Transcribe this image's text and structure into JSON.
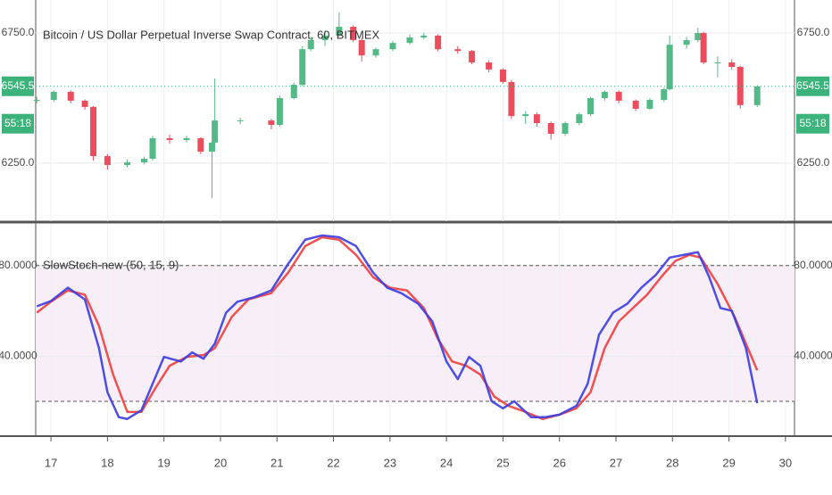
{
  "chart_data": [
    {
      "type": "candlestick",
      "title": "Bitcoin / US Dollar Perpetual Inverse Swap Contract, 60, BITMEX",
      "x": [
        16.75,
        17.05,
        17.35,
        17.6,
        17.75,
        18.0,
        18.35,
        18.65,
        18.8,
        19.1,
        19.4,
        19.65,
        19.85,
        19.9,
        20.35,
        20.9,
        21.05,
        21.3,
        21.45,
        21.6,
        21.85,
        22.1,
        22.35,
        22.5,
        22.75,
        23.05,
        23.35,
        23.6,
        23.85,
        24.2,
        24.45,
        24.75,
        25.0,
        25.15,
        25.4,
        25.6,
        25.85,
        26.1,
        26.35,
        26.55,
        26.8,
        27.05,
        27.35,
        27.6,
        27.85,
        27.95,
        28.25,
        28.45,
        28.55,
        28.8,
        29.05,
        29.2,
        29.5
      ],
      "open": [
        6490,
        6493,
        6524,
        6490,
        6466,
        6277,
        6243,
        6253,
        6267,
        6346,
        6339,
        6346,
        6294,
        6329,
        6414,
        6414,
        6397,
        6500,
        6551,
        6688,
        6723,
        6740,
        6774,
        6723,
        6664,
        6688,
        6712,
        6733,
        6740,
        6688,
        6681,
        6637,
        6610,
        6562,
        6431,
        6438,
        6404,
        6363,
        6404,
        6438,
        6500,
        6524,
        6490,
        6459,
        6493,
        6534,
        6705,
        6723,
        6750,
        6637,
        6637,
        6620,
        6473
      ],
      "high": [
        6505,
        6530,
        6530,
        6495,
        6470,
        6285,
        6265,
        6275,
        6355,
        6360,
        6355,
        6350,
        6335,
        6575,
        6425,
        6420,
        6510,
        6560,
        6700,
        6735,
        6760,
        6829,
        6780,
        6730,
        6695,
        6720,
        6745,
        6750,
        6745,
        6700,
        6685,
        6645,
        6615,
        6570,
        6450,
        6445,
        6410,
        6410,
        6445,
        6505,
        6530,
        6530,
        6495,
        6500,
        6540,
        6740,
        6735,
        6770,
        6755,
        6660,
        6650,
        6625,
        6550
      ],
      "low": [
        6480,
        6485,
        6480,
        6455,
        6260,
        6225,
        6235,
        6245,
        6260,
        6325,
        6330,
        6285,
        6116,
        6320,
        6400,
        6380,
        6390,
        6495,
        6545,
        6680,
        6700,
        6735,
        6715,
        6640,
        6655,
        6680,
        6705,
        6725,
        6680,
        6670,
        6630,
        6600,
        6555,
        6420,
        6400,
        6390,
        6340,
        6355,
        6395,
        6430,
        6490,
        6480,
        6450,
        6455,
        6485,
        6530,
        6690,
        6715,
        6630,
        6580,
        6610,
        6460,
        6465
      ],
      "close": [
        6493,
        6524,
        6490,
        6466,
        6277,
        6243,
        6253,
        6267,
        6346,
        6339,
        6346,
        6294,
        6329,
        6414,
        6414,
        6397,
        6500,
        6551,
        6688,
        6723,
        6740,
        6774,
        6723,
        6664,
        6688,
        6712,
        6733,
        6740,
        6688,
        6681,
        6637,
        6610,
        6562,
        6431,
        6438,
        6404,
        6363,
        6404,
        6438,
        6500,
        6524,
        6490,
        6459,
        6493,
        6534,
        6705,
        6723,
        6750,
        6637,
        6637,
        6620,
        6473,
        6545
      ],
      "up_color": "#53b987",
      "down_color": "#eb4d5c",
      "xlim": [
        16.73,
        30.16
      ],
      "ylim": [
        6027,
        6877
      ],
      "yticks": [
        {
          "value": 6250,
          "label": "6250.0"
        },
        {
          "value": 6750,
          "label": "6750.0"
        }
      ],
      "last_price": {
        "value": 6545.5,
        "label": "6545.5"
      },
      "countdown": "55:18",
      "label_color": "#3cb37a",
      "grid": true
    },
    {
      "type": "line",
      "title": "SlowStoch-new (50, 15, 9)",
      "series": [
        {
          "color": "#ef3e3e",
          "x": [
            16.75,
            17.0,
            17.3,
            17.6,
            17.85,
            18.1,
            18.35,
            18.6,
            18.85,
            19.1,
            19.4,
            19.7,
            19.9,
            20.2,
            20.5,
            20.9,
            21.2,
            21.5,
            21.8,
            22.1,
            22.4,
            22.7,
            23.0,
            23.3,
            23.6,
            23.85,
            24.1,
            24.35,
            24.6,
            24.85,
            25.1,
            25.4,
            25.7,
            26.0,
            26.3,
            26.55,
            26.8,
            27.05,
            27.3,
            27.55,
            27.8,
            28.05,
            28.3,
            28.5,
            28.8,
            29.1,
            29.3,
            29.5
          ],
          "values": [
            59.2,
            64,
            69,
            67.1,
            53.3,
            31.8,
            15.3,
            15.3,
            25.9,
            35.7,
            39.6,
            40.4,
            43.5,
            57.3,
            65.1,
            67.8,
            76.9,
            88.6,
            92.5,
            91.4,
            84.7,
            74.9,
            70.2,
            69,
            61.2,
            47.5,
            37.6,
            35.7,
            31.8,
            22,
            18,
            15.3,
            12.2,
            14.1,
            16.9,
            24,
            43.5,
            55.3,
            61.2,
            67.1,
            74.9,
            82,
            84.7,
            83.5,
            71.8,
            57.3,
            45.5,
            33.7
          ]
        },
        {
          "color": "#3c3ce0",
          "x": [
            16.75,
            17.0,
            17.3,
            17.6,
            17.85,
            18.0,
            18.2,
            18.35,
            18.6,
            18.8,
            19.0,
            19.3,
            19.5,
            19.7,
            19.9,
            20.1,
            20.3,
            20.6,
            20.9,
            21.2,
            21.5,
            21.8,
            22.1,
            22.4,
            22.7,
            22.95,
            23.2,
            23.5,
            23.75,
            24.0,
            24.2,
            24.4,
            24.6,
            24.8,
            25.0,
            25.2,
            25.5,
            25.75,
            26.0,
            26.3,
            26.5,
            26.7,
            26.95,
            27.2,
            27.45,
            27.7,
            27.95,
            28.2,
            28.45,
            28.65,
            28.85,
            29.05,
            29.3,
            29.5
          ],
          "values": [
            62,
            64.3,
            70.2,
            65,
            43.5,
            24,
            13,
            12.2,
            16,
            27.8,
            39.6,
            37.6,
            41.6,
            38.8,
            45.5,
            59.2,
            64,
            66,
            69,
            80.8,
            91.4,
            93.3,
            92.5,
            88.6,
            76.9,
            70.2,
            67.8,
            63.1,
            55.3,
            37.6,
            29.8,
            39.6,
            35.7,
            20,
            16.9,
            20,
            13,
            13,
            14.1,
            18,
            27.8,
            49.4,
            59.2,
            63.1,
            70.2,
            75.7,
            83.5,
            84.7,
            85.9,
            74.9,
            61.2,
            60,
            43.5,
            19.2
          ]
        }
      ],
      "bands": [
        20,
        80
      ],
      "band_color": "#f7eef8",
      "xlim": [
        16.73,
        30.16
      ],
      "ylim": [
        5,
        98.4
      ],
      "xticks": [
        17,
        18,
        19,
        20,
        21,
        22,
        23,
        24,
        25,
        26,
        27,
        28,
        29,
        30
      ],
      "yticks": [
        {
          "value": 40,
          "label": "40.0000"
        },
        {
          "value": 80,
          "label": "80.0000"
        }
      ],
      "grid": true
    }
  ]
}
